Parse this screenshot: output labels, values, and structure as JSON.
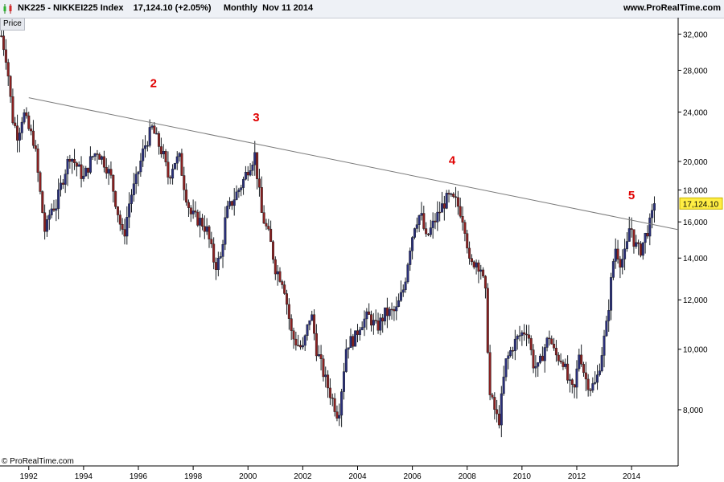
{
  "header": {
    "title": "NK225 - NIKKEI225 Index    17,124.10 (+2.05%)     Monthly  Nov 11 2014",
    "brand": "www.ProRealTime.com"
  },
  "panel": {
    "tab_label": "Price"
  },
  "footer": {
    "copyright": "© ProRealTime.com"
  },
  "chart_data": {
    "type": "candlestick",
    "symbol": "NK225",
    "name": "NIKKEI225 Index",
    "last_price": "17,124.10",
    "last_price_value": 17124.1,
    "change": "(+2.05%)",
    "period": "Monthly",
    "date": "Nov 11 2014",
    "scale": "log",
    "ylim": [
      6500,
      34000
    ],
    "xlim": [
      1990.95,
      2015.7
    ],
    "y_ticks": [
      8000,
      10000,
      12000,
      14000,
      16000,
      18000,
      20000,
      24000,
      28000,
      32000
    ],
    "y_tick_labels": [
      "8,000",
      "10,000",
      "12,000",
      "14,000",
      "16,000",
      "18,000",
      "20,000",
      "24,000",
      "28,000",
      "32,000"
    ],
    "x_ticks": [
      1992,
      1994,
      1996,
      1998,
      2000,
      2002,
      2004,
      2006,
      2008,
      2010,
      2012,
      2014
    ],
    "x_tick_labels": [
      "1992",
      "1994",
      "1996",
      "1998",
      "2000",
      "2002",
      "2004",
      "2006",
      "2008",
      "2010",
      "2012",
      "2014"
    ],
    "grid": false,
    "price_path": [
      [
        1991.0,
        31800
      ],
      [
        1991.2,
        29000
      ],
      [
        1991.4,
        23500
      ],
      [
        1991.6,
        22000
      ],
      [
        1991.8,
        24000
      ],
      [
        1992.0,
        22500
      ],
      [
        1992.2,
        21500
      ],
      [
        1992.4,
        18000
      ],
      [
        1992.6,
        15300
      ],
      [
        1992.8,
        16800
      ],
      [
        1993.0,
        17000
      ],
      [
        1993.2,
        18500
      ],
      [
        1993.5,
        20500
      ],
      [
        1993.8,
        19500
      ],
      [
        1994.0,
        18800
      ],
      [
        1994.3,
        20300
      ],
      [
        1994.5,
        20800
      ],
      [
        1994.8,
        19800
      ],
      [
        1995.0,
        18800
      ],
      [
        1995.2,
        17000
      ],
      [
        1995.45,
        15000
      ],
      [
        1995.7,
        17500
      ],
      [
        1995.9,
        18500
      ],
      [
        1996.2,
        21000
      ],
      [
        1996.5,
        22600
      ],
      [
        1996.7,
        21500
      ],
      [
        1996.9,
        20500
      ],
      [
        1997.1,
        18800
      ],
      [
        1997.3,
        20000
      ],
      [
        1997.5,
        20200
      ],
      [
        1997.7,
        18000
      ],
      [
        1997.9,
        16500
      ],
      [
        1998.1,
        16200
      ],
      [
        1998.3,
        16000
      ],
      [
        1998.5,
        15500
      ],
      [
        1998.8,
        13600
      ],
      [
        1999.0,
        14000
      ],
      [
        1999.2,
        16500
      ],
      [
        1999.5,
        17500
      ],
      [
        1999.8,
        18500
      ],
      [
        2000.0,
        19500
      ],
      [
        2000.25,
        20500
      ],
      [
        2000.5,
        16500
      ],
      [
        2000.8,
        15000
      ],
      [
        2001.0,
        13500
      ],
      [
        2001.3,
        12800
      ],
      [
        2001.6,
        10500
      ],
      [
        2001.8,
        10200
      ],
      [
        2002.0,
        10000
      ],
      [
        2002.3,
        11500
      ],
      [
        2002.5,
        10000
      ],
      [
        2002.8,
        9000
      ],
      [
        2003.0,
        8500
      ],
      [
        2003.3,
        7800
      ],
      [
        2003.6,
        10200
      ],
      [
        2003.9,
        10400
      ],
      [
        2004.1,
        11000
      ],
      [
        2004.4,
        11300
      ],
      [
        2004.7,
        10800
      ],
      [
        2005.0,
        11400
      ],
      [
        2005.4,
        11500
      ],
      [
        2005.7,
        12600
      ],
      [
        2005.9,
        14500
      ],
      [
        2006.1,
        16000
      ],
      [
        2006.3,
        16500
      ],
      [
        2006.5,
        15000
      ],
      [
        2006.8,
        16000
      ],
      [
        2007.1,
        17000
      ],
      [
        2007.3,
        17500
      ],
      [
        2007.6,
        17200
      ],
      [
        2007.8,
        16500
      ],
      [
        2007.95,
        15500
      ],
      [
        2008.1,
        13500
      ],
      [
        2008.3,
        13900
      ],
      [
        2008.5,
        13500
      ],
      [
        2008.7,
        12000
      ],
      [
        2008.8,
        8500
      ],
      [
        2009.0,
        8000
      ],
      [
        2009.15,
        7600
      ],
      [
        2009.4,
        9500
      ],
      [
        2009.7,
        10200
      ],
      [
        2009.9,
        10500
      ],
      [
        2010.2,
        10800
      ],
      [
        2010.4,
        9500
      ],
      [
        2010.6,
        9300
      ],
      [
        2010.8,
        10000
      ],
      [
        2011.0,
        10500
      ],
      [
        2011.2,
        9800
      ],
      [
        2011.5,
        9600
      ],
      [
        2011.7,
        8800
      ],
      [
        2011.9,
        8500
      ],
      [
        2012.1,
        10000
      ],
      [
        2012.3,
        9000
      ],
      [
        2012.5,
        8700
      ],
      [
        2012.7,
        8800
      ],
      [
        2012.9,
        9800
      ],
      [
        2013.1,
        11000
      ],
      [
        2013.3,
        13500
      ],
      [
        2013.4,
        14600
      ],
      [
        2013.6,
        13800
      ],
      [
        2013.8,
        14300
      ],
      [
        2013.95,
        16000
      ],
      [
        2014.1,
        14800
      ],
      [
        2014.3,
        14300
      ],
      [
        2014.5,
        15200
      ],
      [
        2014.7,
        16000
      ],
      [
        2014.85,
        17124
      ]
    ],
    "trendline": {
      "start": [
        1992.0,
        25300
      ],
      "end": [
        2015.7,
        15550
      ]
    },
    "annotations": [
      {
        "label": "2",
        "x": 1996.55,
        "y": 26300
      },
      {
        "label": "3",
        "x": 2000.3,
        "y": 23200
      },
      {
        "label": "4",
        "x": 2007.45,
        "y": 19800
      },
      {
        "label": "5",
        "x": 2014.0,
        "y": 17400
      }
    ]
  }
}
